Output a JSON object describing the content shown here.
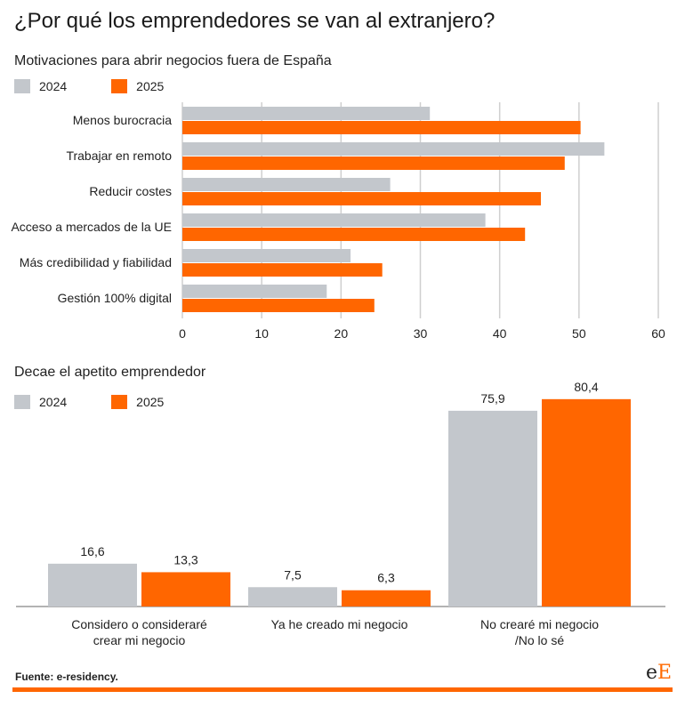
{
  "title": "¿Por qué los emprendedores se van al extranjero?",
  "colors": {
    "c2024": "#c3c7cc",
    "c2025": "#ff6600",
    "grid": "#cfcfcf",
    "axis": "#9a9a9a"
  },
  "legend": {
    "s2024": "2024",
    "s2025": "2025"
  },
  "chart_data": [
    {
      "type": "bar",
      "orientation": "horizontal",
      "title": "Motivaciones para abrir negocios fuera de España",
      "categories": [
        "Menos burocracia",
        "Trabajar en remoto",
        "Reducir costes",
        "Acceso a mercados de la UE",
        "Más credibilidad y fiabilidad",
        "Gestión 100% digital"
      ],
      "series": [
        {
          "name": "2024",
          "values": [
            31.2,
            53.2,
            26.2,
            38.2,
            21.2,
            18.2
          ]
        },
        {
          "name": "2025",
          "values": [
            50.2,
            48.2,
            45.2,
            43.2,
            25.2,
            24.2
          ]
        }
      ],
      "xlim": [
        0,
        60
      ],
      "ticks": [
        "0",
        "10",
        "20",
        "30",
        "40",
        "50",
        "60"
      ],
      "grid": true,
      "legend": "top-left"
    },
    {
      "type": "bar",
      "orientation": "vertical",
      "title": "Decae el apetito emprendedor",
      "categories": [
        [
          "Considero o consideraré",
          "crear mi negocio"
        ],
        [
          "Ya he creado mi negocio"
        ],
        [
          "No crearé mi negocio",
          "/No lo sé"
        ]
      ],
      "series": [
        {
          "name": "2024",
          "values": [
            16.6,
            7.5,
            75.9
          ],
          "labels": [
            "16,6",
            "7,5",
            "75,9"
          ]
        },
        {
          "name": "2025",
          "values": [
            13.3,
            6.3,
            80.4
          ],
          "labels": [
            "13,3",
            "6,3",
            "80,4"
          ]
        }
      ],
      "grid": false,
      "legend": "top-left"
    }
  ],
  "source": "Fuente: e-residency.",
  "logo": {
    "part1": "e",
    "part2": "E"
  }
}
